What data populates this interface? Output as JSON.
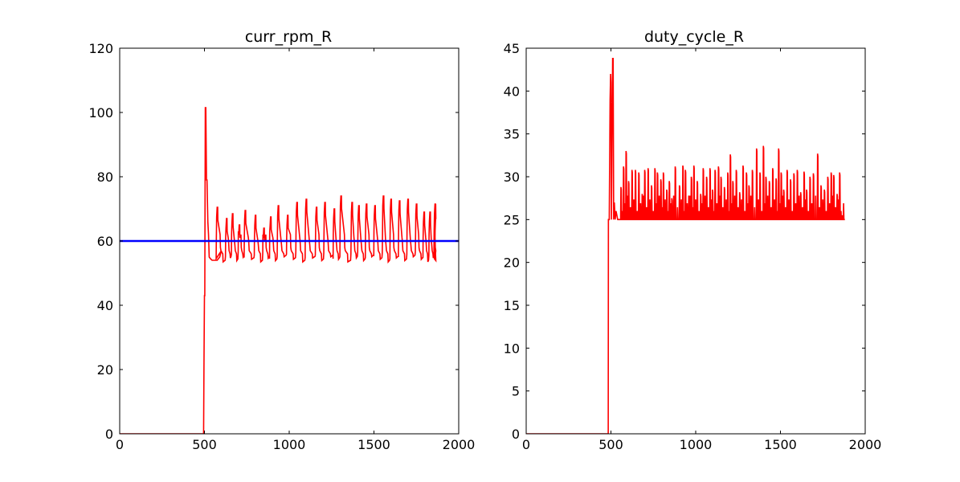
{
  "figure": {
    "background": "#ffffff"
  },
  "chart_data": [
    {
      "type": "line",
      "title": "curr_rpm_R",
      "xlabel": "",
      "ylabel": "",
      "xlim": [
        0,
        2000
      ],
      "ylim": [
        0,
        120
      ],
      "x_ticks": [
        0,
        500,
        1000,
        1500,
        2000
      ],
      "y_ticks": [
        0,
        20,
        40,
        60,
        80,
        100,
        120
      ],
      "x_tick_labels": [
        "0",
        "500",
        "1000",
        "1500",
        "2000"
      ],
      "y_tick_labels": [
        "0",
        "20",
        "40",
        "60",
        "80",
        "100",
        "120"
      ],
      "grid": false,
      "series": [
        {
          "color": "#ff0000",
          "style": "step-oscillation",
          "x": [
            0,
            495,
            497,
            500,
            502,
            505,
            508,
            512,
            515,
            520,
            524,
            528,
            535,
            545,
            560,
            575,
            590,
            600
          ],
          "y": [
            0,
            0,
            20,
            43,
            43,
            101.5,
            101.5,
            79,
            79,
            66,
            62,
            55,
            54.5,
            54,
            54,
            54,
            55,
            57
          ],
          "osc_start": 560,
          "osc_end": 1865,
          "osc_low": 54.5,
          "osc_high": 71,
          "osc_period": 48,
          "peaks": [
            {
              "x": 575,
              "y": 70.5
            },
            {
              "x": 630,
              "y": 67
            },
            {
              "x": 665,
              "y": 68.5
            },
            {
              "x": 705,
              "y": 65
            },
            {
              "x": 740,
              "y": 69.5
            },
            {
              "x": 800,
              "y": 68
            },
            {
              "x": 850,
              "y": 64
            },
            {
              "x": 890,
              "y": 67.5
            },
            {
              "x": 935,
              "y": 71
            },
            {
              "x": 990,
              "y": 68
            },
            {
              "x": 1045,
              "y": 72
            },
            {
              "x": 1100,
              "y": 73
            },
            {
              "x": 1160,
              "y": 70.5
            },
            {
              "x": 1210,
              "y": 72
            },
            {
              "x": 1265,
              "y": 70
            },
            {
              "x": 1305,
              "y": 74
            },
            {
              "x": 1370,
              "y": 72
            },
            {
              "x": 1410,
              "y": 71
            },
            {
              "x": 1455,
              "y": 71.5
            },
            {
              "x": 1505,
              "y": 71
            },
            {
              "x": 1555,
              "y": 74
            },
            {
              "x": 1600,
              "y": 73
            },
            {
              "x": 1650,
              "y": 72.5
            },
            {
              "x": 1700,
              "y": 73
            },
            {
              "x": 1750,
              "y": 71.5
            },
            {
              "x": 1795,
              "y": 69
            },
            {
              "x": 1830,
              "y": 69
            },
            {
              "x": 1860,
              "y": 71.5
            }
          ],
          "final": {
            "x": 1865,
            "y": 66.8
          }
        },
        {
          "color": "#0000ff",
          "style": "hline",
          "x": [
            0,
            2000
          ],
          "y": [
            60,
            60
          ]
        }
      ]
    },
    {
      "type": "line",
      "title": "duty_cycle_R",
      "xlabel": "",
      "ylabel": "",
      "xlim": [
        0,
        2000
      ],
      "ylim": [
        0,
        45
      ],
      "x_ticks": [
        0,
        500,
        1000,
        1500,
        2000
      ],
      "y_ticks": [
        0,
        5,
        10,
        15,
        20,
        25,
        30,
        35,
        40,
        45
      ],
      "x_tick_labels": [
        "0",
        "500",
        "1000",
        "1500",
        "2000"
      ],
      "y_tick_labels": [
        "0",
        "5",
        "10",
        "15",
        "20",
        "25",
        "30",
        "35",
        "40",
        "45"
      ],
      "grid": false,
      "series": [
        {
          "color": "#ff0000",
          "style": "spikes",
          "x": [
            0,
            484,
            485,
            490,
            495,
            498,
            500,
            503,
            506,
            510,
            513,
            516,
            520,
            525,
            530,
            540,
            550
          ],
          "y": [
            0,
            0,
            25,
            25,
            39,
            42,
            41,
            25,
            33.5,
            43.8,
            43.8,
            25,
            27,
            25,
            26,
            25,
            25
          ],
          "base": 25,
          "spike_start": 560,
          "spike_end": 1885,
          "spikes": [
            {
              "x": 560,
              "y": 28.8
            },
            {
              "x": 575,
              "y": 31.2
            },
            {
              "x": 590,
              "y": 33
            },
            {
              "x": 605,
              "y": 29.5
            },
            {
              "x": 625,
              "y": 30.8
            },
            {
              "x": 645,
              "y": 30.8
            },
            {
              "x": 665,
              "y": 30.5
            },
            {
              "x": 685,
              "y": 28
            },
            {
              "x": 700,
              "y": 30.8
            },
            {
              "x": 720,
              "y": 31
            },
            {
              "x": 740,
              "y": 29
            },
            {
              "x": 760,
              "y": 31
            },
            {
              "x": 775,
              "y": 30.5
            },
            {
              "x": 795,
              "y": 29.7
            },
            {
              "x": 810,
              "y": 30.5
            },
            {
              "x": 830,
              "y": 28.5
            },
            {
              "x": 845,
              "y": 29.5
            },
            {
              "x": 860,
              "y": 27.5
            },
            {
              "x": 880,
              "y": 31.2
            },
            {
              "x": 905,
              "y": 29
            },
            {
              "x": 925,
              "y": 31.3
            },
            {
              "x": 940,
              "y": 30.8
            },
            {
              "x": 960,
              "y": 27.8
            },
            {
              "x": 975,
              "y": 30
            },
            {
              "x": 990,
              "y": 31.3
            },
            {
              "x": 1010,
              "y": 29.5
            },
            {
              "x": 1030,
              "y": 28
            },
            {
              "x": 1045,
              "y": 31
            },
            {
              "x": 1065,
              "y": 30
            },
            {
              "x": 1085,
              "y": 31
            },
            {
              "x": 1100,
              "y": 28.5
            },
            {
              "x": 1115,
              "y": 30.8
            },
            {
              "x": 1135,
              "y": 31.2
            },
            {
              "x": 1150,
              "y": 30
            },
            {
              "x": 1170,
              "y": 28.8
            },
            {
              "x": 1190,
              "y": 30.5
            },
            {
              "x": 1205,
              "y": 32.6
            },
            {
              "x": 1220,
              "y": 29.5
            },
            {
              "x": 1240,
              "y": 30.8
            },
            {
              "x": 1260,
              "y": 28.2
            },
            {
              "x": 1280,
              "y": 31.3
            },
            {
              "x": 1300,
              "y": 30.5
            },
            {
              "x": 1315,
              "y": 29
            },
            {
              "x": 1335,
              "y": 30.8
            },
            {
              "x": 1360,
              "y": 33.3
            },
            {
              "x": 1380,
              "y": 30.5
            },
            {
              "x": 1400,
              "y": 33.6
            },
            {
              "x": 1415,
              "y": 30
            },
            {
              "x": 1435,
              "y": 29.5
            },
            {
              "x": 1455,
              "y": 31
            },
            {
              "x": 1475,
              "y": 29.8
            },
            {
              "x": 1490,
              "y": 33.3
            },
            {
              "x": 1505,
              "y": 30.5
            },
            {
              "x": 1520,
              "y": 28.5
            },
            {
              "x": 1540,
              "y": 30.8
            },
            {
              "x": 1560,
              "y": 29.7
            },
            {
              "x": 1580,
              "y": 30.4
            },
            {
              "x": 1600,
              "y": 30.8
            },
            {
              "x": 1620,
              "y": 28.2
            },
            {
              "x": 1640,
              "y": 30.6
            },
            {
              "x": 1655,
              "y": 28.5
            },
            {
              "x": 1675,
              "y": 30
            },
            {
              "x": 1695,
              "y": 30.4
            },
            {
              "x": 1720,
              "y": 32.7
            },
            {
              "x": 1740,
              "y": 29
            },
            {
              "x": 1760,
              "y": 28.5
            },
            {
              "x": 1780,
              "y": 30
            },
            {
              "x": 1800,
              "y": 30.5
            },
            {
              "x": 1815,
              "y": 30.2
            },
            {
              "x": 1835,
              "y": 28
            },
            {
              "x": 1850,
              "y": 30.5
            },
            {
              "x": 1865,
              "y": 25.5
            }
          ],
          "final": {
            "x": 1880,
            "y": 25
          }
        }
      ]
    }
  ]
}
